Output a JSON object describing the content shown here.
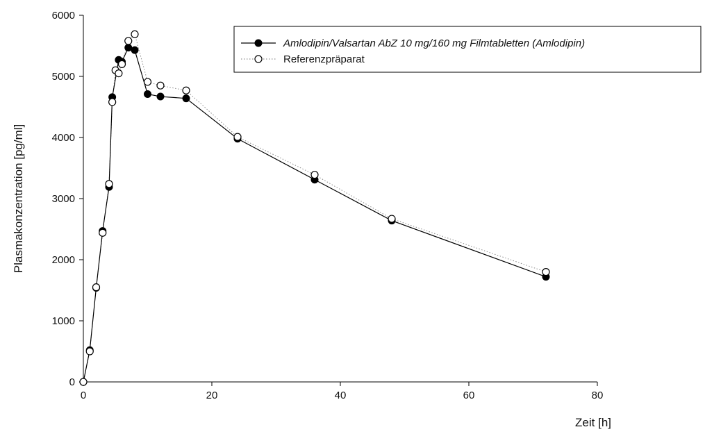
{
  "chart_data": {
    "type": "line",
    "title": "",
    "xlabel": "Zeit [h]",
    "ylabel": "Plasmakonzentration [pg/ml]",
    "xlim": [
      0,
      80
    ],
    "ylim": [
      0,
      6000
    ],
    "x_ticks": [
      "0",
      "20",
      "40",
      "60",
      "80"
    ],
    "y_ticks": [
      "0",
      "1000",
      "2000",
      "3000",
      "4000",
      "5000",
      "6000"
    ],
    "grid": false,
    "legend_position": "top-right",
    "series": [
      {
        "name": "Amlodipin/Valsartan AbZ 10 mg/160 mg Filmtabletten (Amlodipin)",
        "marker": "filled-circle",
        "line": "solid",
        "color": "#000000",
        "x": [
          0,
          1,
          2,
          3,
          4,
          4.5,
          5.5,
          6,
          7,
          8,
          10,
          12,
          16,
          24,
          36,
          48,
          72
        ],
        "y": [
          0,
          520,
          1540,
          2470,
          3190,
          4660,
          5270,
          5240,
          5470,
          5430,
          4710,
          4670,
          4640,
          3980,
          3310,
          2640,
          1720
        ]
      },
      {
        "name": "Referenzpräparat",
        "marker": "open-circle",
        "line": "dotted",
        "color": "#000000",
        "x": [
          0,
          1,
          2,
          3,
          4,
          4.5,
          5,
          5.5,
          6,
          7,
          8,
          10,
          12,
          16,
          24,
          36,
          48,
          72
        ],
        "y": [
          0,
          500,
          1550,
          2440,
          3240,
          4580,
          5100,
          5050,
          5200,
          5580,
          5690,
          4910,
          4850,
          4770,
          4010,
          3390,
          2670,
          1800
        ]
      }
    ]
  }
}
